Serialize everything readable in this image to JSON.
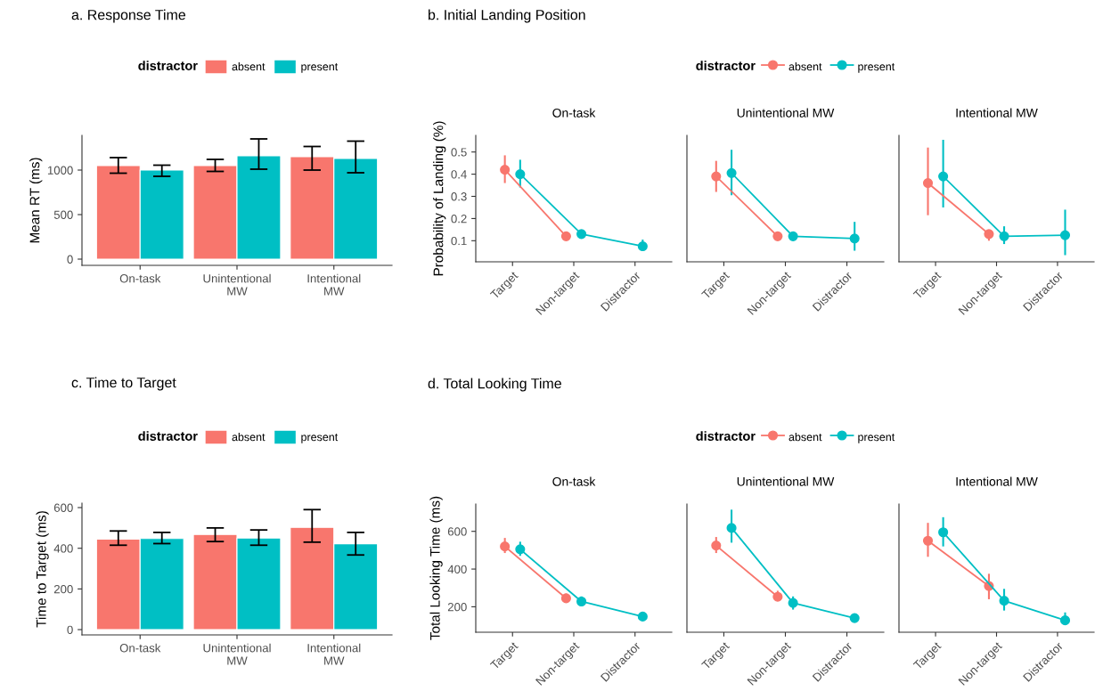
{
  "chart_data": [
    {
      "type": "bar",
      "title": "a. Response Time",
      "ylabel": "Mean RT (ms)",
      "legend": "top",
      "legend_title": "distractor",
      "categories": [
        "On-task",
        "Unintentional\nMW",
        "Intentional\nMW"
      ],
      "ylim": [
        -70,
        1390
      ],
      "yticks": [
        0,
        500,
        1000
      ],
      "series": [
        {
          "name": "absent",
          "color": "#f8766d",
          "values": [
            1050,
            1050,
            1150
          ],
          "errors": [
            [
              965,
              1140
            ],
            [
              985,
              1120
            ],
            [
              1000,
              1265
            ]
          ]
        },
        {
          "name": "present",
          "color": "#00bfc4",
          "values": [
            1000,
            1160,
            1130
          ],
          "errors": [
            [
              930,
              1055
            ],
            [
              1010,
              1350
            ],
            [
              970,
              1325
            ]
          ]
        }
      ]
    },
    {
      "type": "line",
      "title": "b. Initial Landing Position",
      "subtitle": "On-task",
      "ylabel": "Probability of Landing (%)",
      "legend": "top",
      "legend_title": "distractor",
      "marker": "circle",
      "line_style": "solid",
      "categories": [
        "Target",
        "Non-target",
        "Distractor"
      ],
      "ylim": [
        0.005,
        0.575
      ],
      "yticks": [
        0.1,
        0.2,
        0.3,
        0.4,
        0.5
      ],
      "series": [
        {
          "name": "absent",
          "color": "#f8766d",
          "values": [
            0.42,
            0.12,
            null
          ],
          "errors": [
            [
              0.36,
              0.485
            ],
            null,
            null
          ]
        },
        {
          "name": "present",
          "color": "#00bfc4",
          "values": [
            0.4,
            0.13,
            0.075
          ],
          "errors": [
            [
              0.34,
              0.465
            ],
            [
              0.12,
              0.14
            ],
            [
              0.055,
              0.105
            ]
          ]
        }
      ]
    },
    {
      "type": "line",
      "subtitle": "Unintentional MW",
      "marker": "circle",
      "line_style": "solid",
      "tick_labels": "x",
      "categories": [
        "Target",
        "Non-target",
        "Distractor"
      ],
      "ylim": [
        0.005,
        0.575
      ],
      "series": [
        {
          "color": "#f8766d",
          "values": [
            0.39,
            0.12,
            null
          ],
          "errors": [
            [
              0.32,
              0.46
            ],
            null,
            null
          ]
        },
        {
          "color": "#00bfc4",
          "values": [
            0.405,
            0.12,
            0.11
          ],
          "errors": [
            [
              0.305,
              0.51
            ],
            [
              0.105,
              0.135
            ],
            [
              0.055,
              0.185
            ]
          ]
        }
      ]
    },
    {
      "type": "line",
      "subtitle": "Intentional MW",
      "marker": "circle",
      "line_style": "solid",
      "tick_labels": "x",
      "categories": [
        "Target",
        "Non-target",
        "Distractor"
      ],
      "ylim": [
        0.005,
        0.575
      ],
      "series": [
        {
          "color": "#f8766d",
          "values": [
            0.36,
            0.13,
            null
          ],
          "errors": [
            [
              0.215,
              0.52
            ],
            [
              0.1,
              0.145
            ],
            null
          ]
        },
        {
          "color": "#00bfc4",
          "values": [
            0.39,
            0.12,
            0.125
          ],
          "errors": [
            [
              0.25,
              0.555
            ],
            [
              0.085,
              0.165
            ],
            [
              0.035,
              0.24
            ]
          ]
        }
      ]
    },
    {
      "type": "bar",
      "title": "c. Time to Target",
      "ylabel": "Time to Target (ms)",
      "legend": "top",
      "legend_title": "distractor",
      "categories": [
        "On-task",
        "Unintentional\nMW",
        "Intentional\nMW"
      ],
      "ylim": [
        -26,
        622
      ],
      "yticks": [
        0,
        200,
        400,
        600
      ],
      "series": [
        {
          "name": "absent",
          "color": "#f8766d",
          "values": [
            445,
            468,
            503
          ],
          "errors": [
            [
              415,
              485
            ],
            [
              433,
              500
            ],
            [
              430,
              590
            ]
          ]
        },
        {
          "name": "present",
          "color": "#00bfc4",
          "values": [
            448,
            450,
            422
          ],
          "errors": [
            [
              423,
              478
            ],
            [
              415,
              490
            ],
            [
              367,
              478
            ]
          ]
        }
      ]
    },
    {
      "type": "line",
      "title": "d. Total Looking Time",
      "subtitle": "On-task",
      "ylabel": "Total Looking Time (ms)",
      "legend": "top",
      "legend_title": "distractor",
      "marker": "circle",
      "line_style": "solid",
      "categories": [
        "Target",
        "Non-target",
        "Distractor"
      ],
      "ylim": [
        65,
        745
      ],
      "yticks": [
        200,
        400,
        600
      ],
      "series": [
        {
          "name": "absent",
          "color": "#f8766d",
          "values": [
            520,
            245,
            null
          ],
          "errors": [
            [
              485,
              565
            ],
            [
              225,
              270
            ],
            null
          ]
        },
        {
          "name": "present",
          "color": "#00bfc4",
          "values": [
            505,
            228,
            148
          ],
          "errors": [
            [
              470,
              545
            ],
            [
              205,
              255
            ],
            [
              138,
              160
            ]
          ]
        }
      ]
    },
    {
      "type": "line",
      "subtitle": "Unintentional MW",
      "marker": "circle",
      "line_style": "solid",
      "tick_labels": "x",
      "categories": [
        "Target",
        "Non-target",
        "Distractor"
      ],
      "ylim": [
        65,
        745
      ],
      "series": [
        {
          "color": "#f8766d",
          "values": [
            525,
            253,
            null
          ],
          "errors": [
            [
              485,
              570
            ],
            [
              230,
              285
            ],
            null
          ]
        },
        {
          "color": "#00bfc4",
          "values": [
            618,
            220,
            140
          ],
          "errors": [
            [
              540,
              715
            ],
            [
              185,
              255
            ],
            [
              130,
              150
            ]
          ]
        }
      ]
    },
    {
      "type": "line",
      "subtitle": "Intentional MW",
      "marker": "circle",
      "line_style": "solid",
      "tick_labels": "x",
      "categories": [
        "Target",
        "Non-target",
        "Distractor"
      ],
      "ylim": [
        65,
        745
      ],
      "series": [
        {
          "color": "#f8766d",
          "values": [
            550,
            310,
            null
          ],
          "errors": [
            [
              465,
              645
            ],
            [
              240,
              375
            ],
            null
          ]
        },
        {
          "color": "#00bfc4",
          "values": [
            595,
            232,
            128
          ],
          "errors": [
            [
              520,
              675
            ],
            [
              180,
              295
            ],
            [
              110,
              170
            ]
          ]
        }
      ]
    }
  ]
}
